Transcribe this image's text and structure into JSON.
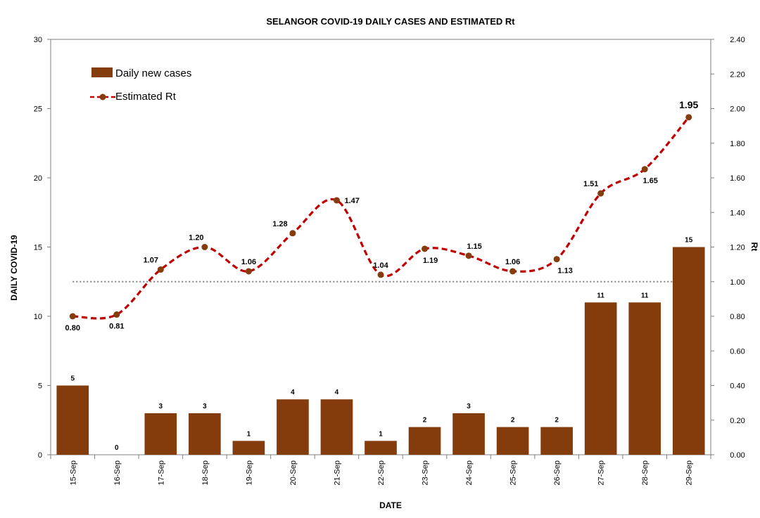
{
  "chart_data": {
    "type": "bar",
    "title": "SELANGOR COVID-19 DAILY CASES AND ESTIMATED  Rt",
    "xlabel": "DATE",
    "ylabel": "DAILY COVID-19",
    "y2label": "Rt",
    "ylim": [
      0,
      30
    ],
    "yticks": [
      "0",
      "5",
      "10",
      "15",
      "20",
      "25",
      "30"
    ],
    "y2lim": [
      0,
      2.4
    ],
    "y2ticks": [
      "0.00",
      "0.20",
      "0.40",
      "0.60",
      "0.80",
      "1.00",
      "1.20",
      "1.40",
      "1.60",
      "1.80",
      "2.00",
      "2.20",
      "2.40"
    ],
    "categories": [
      "15-Sep",
      "16-Sep",
      "17-Sep",
      "18-Sep",
      "19-Sep",
      "20-Sep",
      "21-Sep",
      "22-Sep",
      "23-Sep",
      "24-Sep",
      "25-Sep",
      "26-Sep",
      "27-Sep",
      "28-Sep",
      "29-Sep"
    ],
    "series": [
      {
        "name": "Daily new cases",
        "type": "bar",
        "axis": "left",
        "color": "#843C0C",
        "values": [
          5,
          0,
          3,
          3,
          1,
          4,
          4,
          1,
          2,
          3,
          2,
          2,
          11,
          11,
          15
        ],
        "labels": [
          "5",
          "0",
          "3",
          "3",
          "1",
          "4",
          "4",
          "1",
          "2",
          "3",
          "2",
          "2",
          "11",
          "11",
          "15"
        ]
      },
      {
        "name": "Estimated Rt",
        "type": "line",
        "axis": "right",
        "line_color": "#C00000",
        "marker_color": "#843C0C",
        "line_style": "dashed-smooth",
        "values": [
          0.8,
          0.81,
          1.07,
          1.2,
          1.06,
          1.28,
          1.47,
          1.04,
          1.19,
          1.15,
          1.06,
          1.13,
          1.51,
          1.65,
          1.95
        ],
        "labels": [
          "0.80",
          "0.81",
          "1.07",
          "1.20",
          "1.06",
          "1.28",
          "1.47",
          "1.04",
          "1.19",
          "1.15",
          "1.06",
          "1.13",
          "1.51",
          "1.65",
          "1.95"
        ]
      }
    ],
    "reference_line": {
      "axis": "right",
      "value": 1.0,
      "style": "dotted",
      "color": "#808080"
    },
    "legend": "top-left",
    "grid": false
  }
}
